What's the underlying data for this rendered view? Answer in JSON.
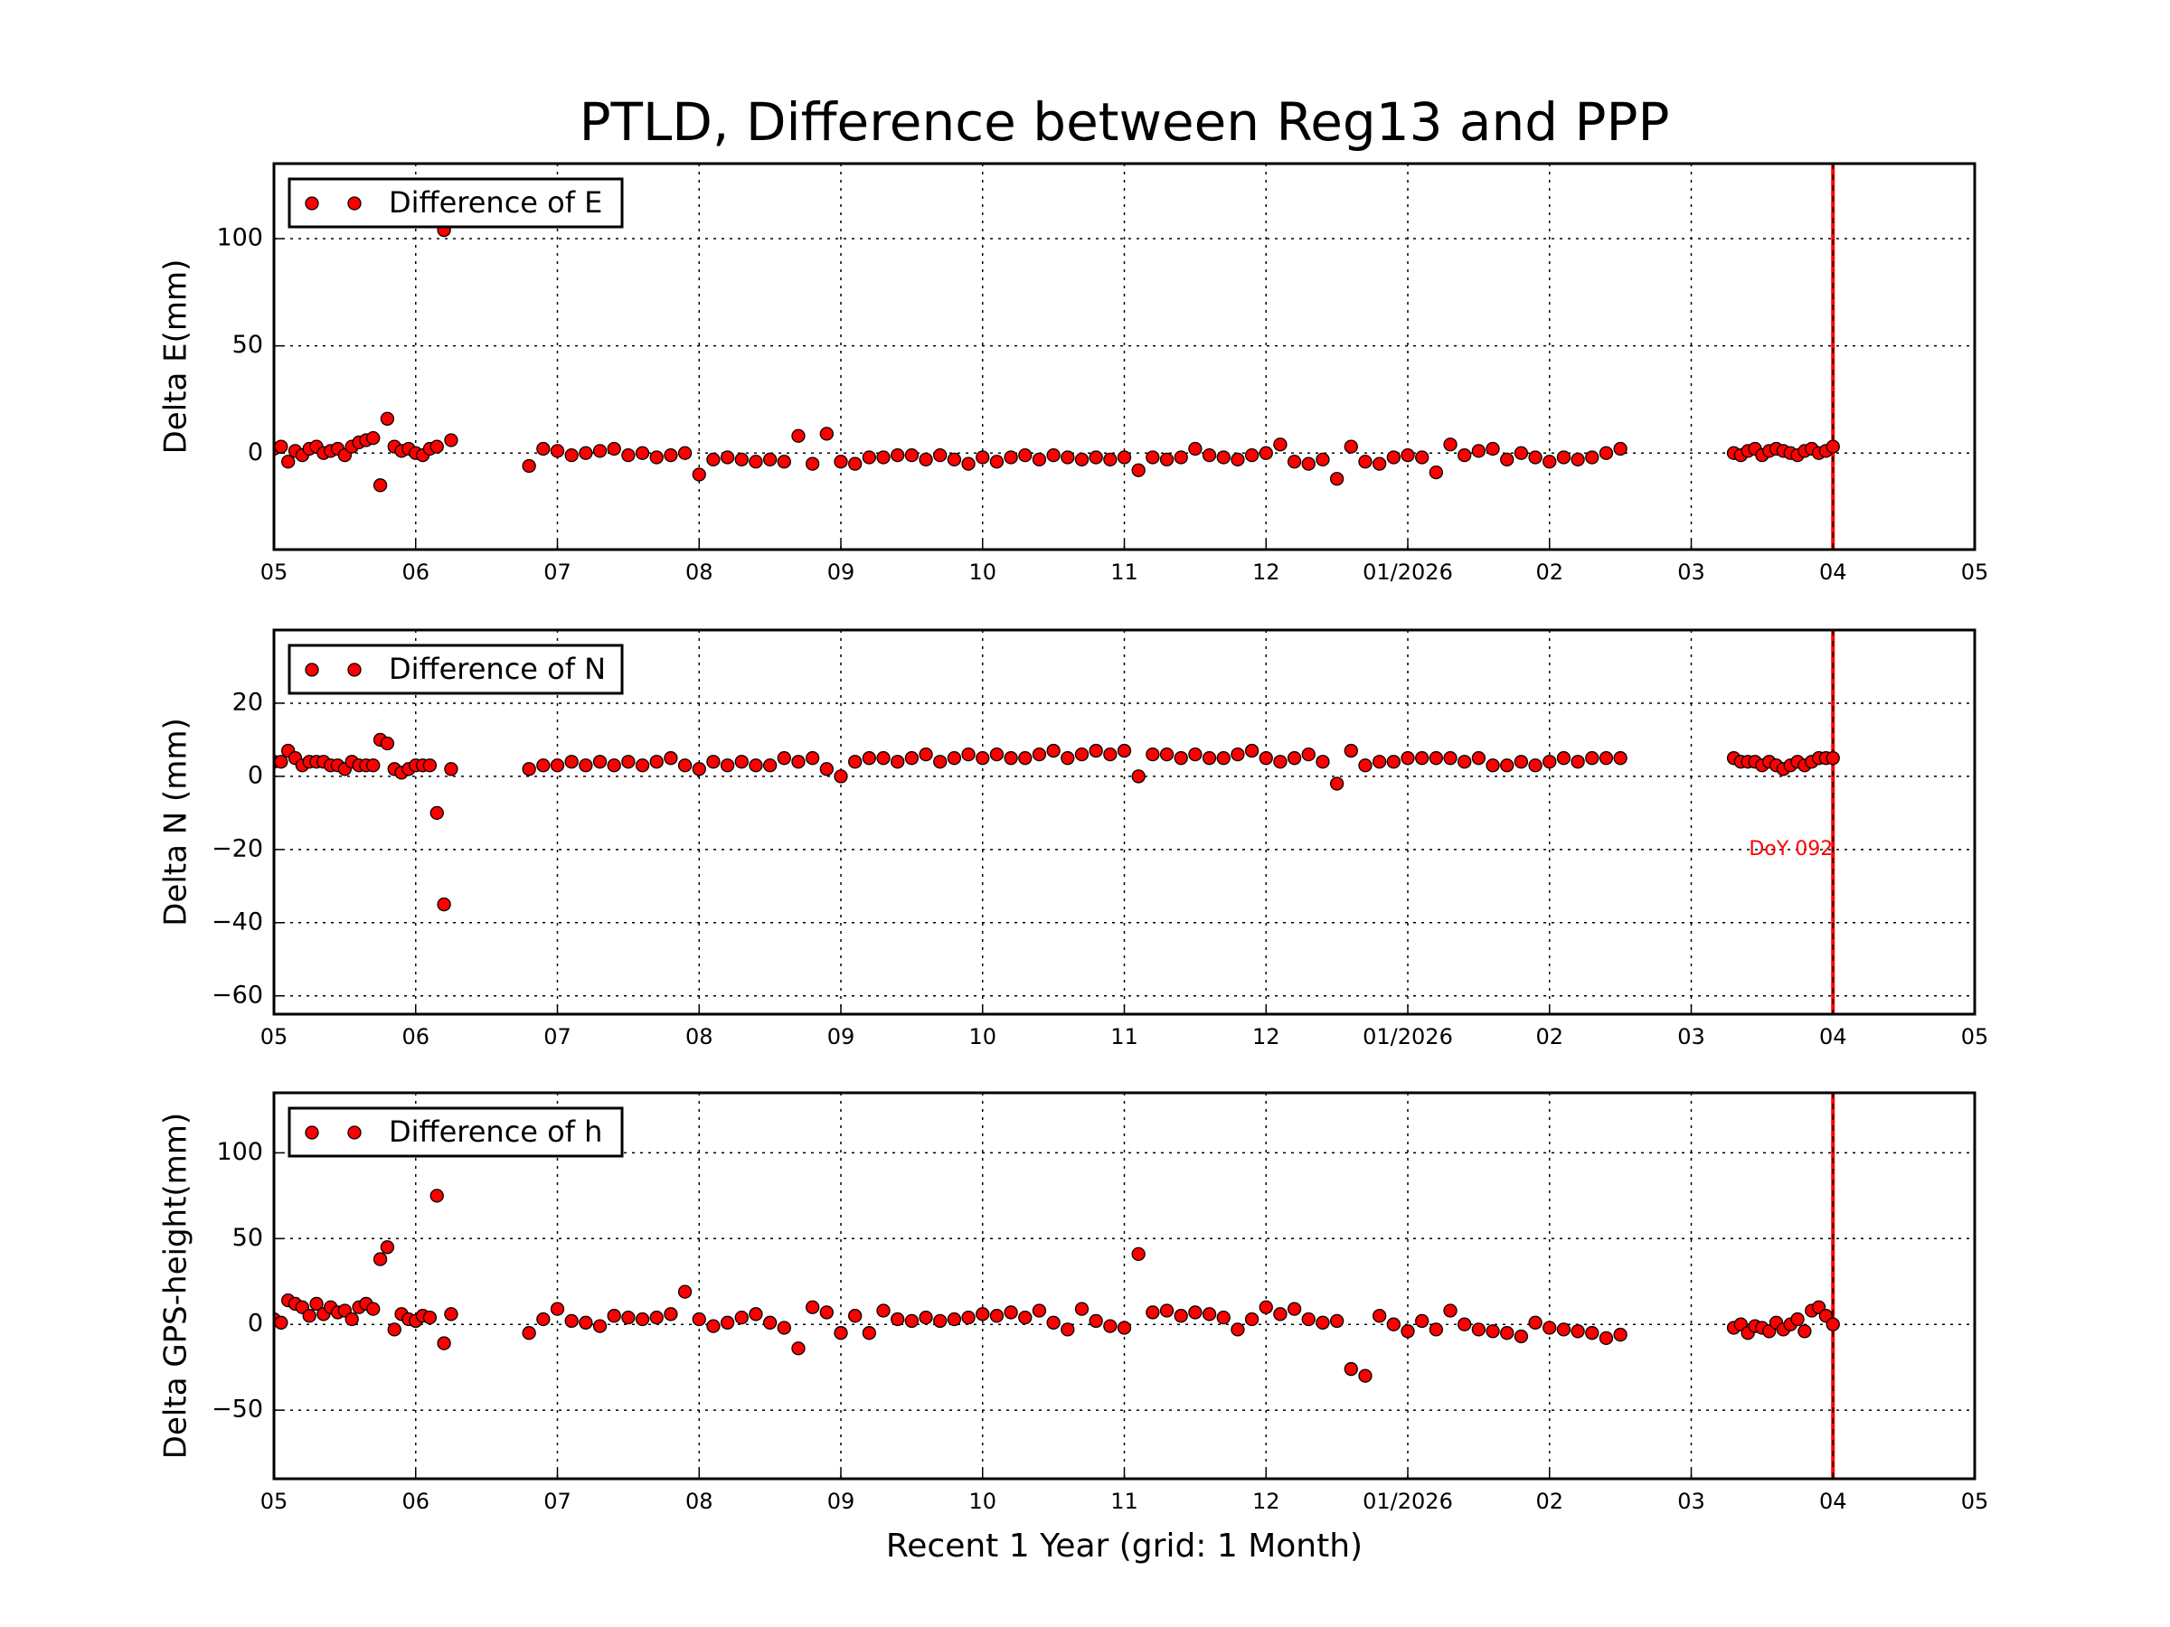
{
  "chart_data": [
    {
      "type": "scatter",
      "title": "PTLD, Difference between Reg13 and PPP",
      "ylabel": "Delta E(mm)",
      "x": [
        0,
        0.05,
        0.1,
        0.15,
        0.2,
        0.25,
        0.3,
        0.35,
        0.4,
        0.45,
        0.5,
        0.55,
        0.6,
        0.65,
        0.7,
        0.75,
        0.8,
        0.85,
        0.9,
        0.95,
        1.0,
        1.05,
        1.1,
        1.15,
        1.2,
        1.25,
        1.8,
        1.9,
        2.0,
        2.1,
        2.2,
        2.3,
        2.4,
        2.5,
        2.6,
        2.7,
        2.8,
        2.9,
        3.0,
        3.1,
        3.2,
        3.3,
        3.4,
        3.5,
        3.6,
        3.7,
        3.8,
        3.9,
        4.0,
        4.1,
        4.2,
        4.3,
        4.4,
        4.5,
        4.6,
        4.7,
        4.8,
        4.9,
        5.0,
        5.1,
        5.2,
        5.3,
        5.4,
        5.5,
        5.6,
        5.7,
        5.8,
        5.9,
        6.0,
        6.1,
        6.2,
        6.3,
        6.4,
        6.5,
        6.6,
        6.7,
        6.8,
        6.9,
        7.0,
        7.1,
        7.2,
        7.3,
        7.4,
        7.5,
        7.6,
        7.7,
        7.8,
        7.9,
        8.0,
        8.1,
        8.2,
        8.3,
        8.4,
        8.5,
        8.6,
        8.7,
        8.8,
        8.9,
        9.0,
        9.1,
        9.2,
        9.3,
        9.4,
        9.5,
        10.3,
        10.35,
        10.4,
        10.45,
        10.5,
        10.55,
        10.6,
        10.65,
        10.7,
        10.75,
        10.8,
        10.85,
        10.9,
        10.95,
        11.0
      ],
      "series": [
        {
          "name": "Difference of E",
          "color": "#ff0000",
          "values": [
            2,
            3,
            -4,
            1,
            -1,
            2,
            3,
            0,
            1,
            2,
            -1,
            3,
            5,
            6,
            7,
            -15,
            16,
            3,
            1,
            2,
            0,
            -1,
            2,
            3,
            104,
            6,
            -6,
            2,
            1,
            -1,
            0,
            1,
            2,
            -1,
            0,
            -2,
            -1,
            0,
            -10,
            -3,
            -2,
            -3,
            -4,
            -3,
            -4,
            8,
            -5,
            9,
            -4,
            -5,
            -2,
            -2,
            -1,
            -1,
            -3,
            -1,
            -3,
            -5,
            -2,
            -4,
            -2,
            -1,
            -3,
            -1,
            -2,
            -3,
            -2,
            -3,
            -2,
            -8,
            -2,
            -3,
            -2,
            2,
            -1,
            -2,
            -3,
            -1,
            0,
            4,
            -4,
            -5,
            -3,
            -12,
            3,
            -4,
            -5,
            -2,
            -1,
            -2,
            -9,
            4,
            -1,
            1,
            2,
            -3,
            0,
            -2,
            -4,
            -2,
            -3,
            -2,
            0,
            2,
            0,
            -1,
            1,
            2,
            -1,
            1,
            2,
            1,
            0,
            -1,
            1,
            2,
            0,
            1,
            3
          ]
        }
      ],
      "xlim": [
        0,
        12
      ],
      "xticks": [
        {
          "value": 0,
          "label": "05"
        },
        {
          "value": 1,
          "label": "06"
        },
        {
          "value": 2,
          "label": "07"
        },
        {
          "value": 3,
          "label": "08"
        },
        {
          "value": 4,
          "label": "09"
        },
        {
          "value": 5,
          "label": "10"
        },
        {
          "value": 6,
          "label": "11"
        },
        {
          "value": 7,
          "label": "12"
        },
        {
          "value": 8,
          "label": "01/2026"
        },
        {
          "value": 9,
          "label": "02"
        },
        {
          "value": 10,
          "label": "03"
        },
        {
          "value": 11,
          "label": "04"
        },
        {
          "value": 12,
          "label": "05"
        }
      ],
      "ylim": [
        -45,
        135
      ],
      "yticks": [
        0,
        50,
        100
      ],
      "grid": true,
      "vline": 11,
      "legend": "upper-left"
    },
    {
      "type": "scatter",
      "ylabel": "Delta N (mm)",
      "x": [
        0,
        0.05,
        0.1,
        0.15,
        0.2,
        0.25,
        0.3,
        0.35,
        0.4,
        0.45,
        0.5,
        0.55,
        0.6,
        0.65,
        0.7,
        0.75,
        0.8,
        0.85,
        0.9,
        0.95,
        1.0,
        1.05,
        1.1,
        1.15,
        1.2,
        1.25,
        1.8,
        1.9,
        2.0,
        2.1,
        2.2,
        2.3,
        2.4,
        2.5,
        2.6,
        2.7,
        2.8,
        2.9,
        3.0,
        3.1,
        3.2,
        3.3,
        3.4,
        3.5,
        3.6,
        3.7,
        3.8,
        3.9,
        4.0,
        4.1,
        4.2,
        4.3,
        4.4,
        4.5,
        4.6,
        4.7,
        4.8,
        4.9,
        5.0,
        5.1,
        5.2,
        5.3,
        5.4,
        5.5,
        5.6,
        5.7,
        5.8,
        5.9,
        6.0,
        6.1,
        6.2,
        6.3,
        6.4,
        6.5,
        6.6,
        6.7,
        6.8,
        6.9,
        7.0,
        7.1,
        7.2,
        7.3,
        7.4,
        7.5,
        7.6,
        7.7,
        7.8,
        7.9,
        8.0,
        8.1,
        8.2,
        8.3,
        8.4,
        8.5,
        8.6,
        8.7,
        8.8,
        8.9,
        9.0,
        9.1,
        9.2,
        9.3,
        9.4,
        9.5,
        10.3,
        10.35,
        10.4,
        10.45,
        10.5,
        10.55,
        10.6,
        10.65,
        10.7,
        10.75,
        10.8,
        10.85,
        10.9,
        10.95,
        11.0
      ],
      "series": [
        {
          "name": "Difference of N",
          "color": "#ff0000",
          "values": [
            4,
            4,
            7,
            5,
            3,
            4,
            4,
            4,
            3,
            3,
            2,
            4,
            3,
            3,
            3,
            10,
            9,
            2,
            1,
            2,
            3,
            3,
            3,
            -10,
            -35,
            2,
            2,
            3,
            3,
            4,
            3,
            4,
            3,
            4,
            3,
            4,
            5,
            3,
            2,
            4,
            3,
            4,
            3,
            3,
            5,
            4,
            5,
            2,
            0,
            4,
            5,
            5,
            4,
            5,
            6,
            4,
            5,
            6,
            5,
            6,
            5,
            5,
            6,
            7,
            5,
            6,
            7,
            6,
            7,
            0,
            6,
            6,
            5,
            6,
            5,
            5,
            6,
            7,
            5,
            4,
            5,
            6,
            4,
            -2,
            7,
            3,
            4,
            4,
            5,
            5,
            5,
            5,
            4,
            5,
            3,
            3,
            4,
            3,
            4,
            5,
            4,
            5,
            5,
            5,
            5,
            4,
            4,
            4,
            3,
            4,
            3,
            2,
            3,
            4,
            3,
            4,
            5,
            5,
            5
          ]
        }
      ],
      "xlim": [
        0,
        12
      ],
      "xticks": [
        {
          "value": 0,
          "label": "05"
        },
        {
          "value": 1,
          "label": "06"
        },
        {
          "value": 2,
          "label": "07"
        },
        {
          "value": 3,
          "label": "08"
        },
        {
          "value": 4,
          "label": "09"
        },
        {
          "value": 5,
          "label": "10"
        },
        {
          "value": 6,
          "label": "11"
        },
        {
          "value": 7,
          "label": "12"
        },
        {
          "value": 8,
          "label": "01/2026"
        },
        {
          "value": 9,
          "label": "02"
        },
        {
          "value": 10,
          "label": "03"
        },
        {
          "value": 11,
          "label": "04"
        },
        {
          "value": 12,
          "label": "05"
        }
      ],
      "ylim": [
        -65,
        40
      ],
      "yticks": [
        {
          "value": -60,
          "label": "−60"
        },
        {
          "value": -40,
          "label": "−40"
        },
        {
          "value": -20,
          "label": "−20"
        },
        0,
        20
      ],
      "grid": true,
      "vline": 11,
      "legend": "upper-left",
      "annotation": {
        "text": "DoY 092",
        "x": 11,
        "y": -20
      }
    },
    {
      "type": "scatter",
      "ylabel": "Delta GPS-height(mm)",
      "xlabel": "Recent 1 Year (grid: 1 Month)",
      "x": [
        0,
        0.05,
        0.1,
        0.15,
        0.2,
        0.25,
        0.3,
        0.35,
        0.4,
        0.45,
        0.5,
        0.55,
        0.6,
        0.65,
        0.7,
        0.75,
        0.8,
        0.85,
        0.9,
        0.95,
        1.0,
        1.05,
        1.1,
        1.15,
        1.2,
        1.25,
        1.8,
        1.9,
        2.0,
        2.1,
        2.2,
        2.3,
        2.4,
        2.5,
        2.6,
        2.7,
        2.8,
        2.9,
        3.0,
        3.1,
        3.2,
        3.3,
        3.4,
        3.5,
        3.6,
        3.7,
        3.8,
        3.9,
        4.0,
        4.1,
        4.2,
        4.3,
        4.4,
        4.5,
        4.6,
        4.7,
        4.8,
        4.9,
        5.0,
        5.1,
        5.2,
        5.3,
        5.4,
        5.5,
        5.6,
        5.7,
        5.8,
        5.9,
        6.0,
        6.1,
        6.2,
        6.3,
        6.4,
        6.5,
        6.6,
        6.7,
        6.8,
        6.9,
        7.0,
        7.1,
        7.2,
        7.3,
        7.4,
        7.5,
        7.6,
        7.7,
        7.8,
        7.9,
        8.0,
        8.1,
        8.2,
        8.3,
        8.4,
        8.5,
        8.6,
        8.7,
        8.8,
        8.9,
        9.0,
        9.1,
        9.2,
        9.3,
        9.4,
        9.5,
        10.3,
        10.35,
        10.4,
        10.45,
        10.5,
        10.55,
        10.6,
        10.65,
        10.7,
        10.75,
        10.8,
        10.85,
        10.9,
        10.95,
        11.0
      ],
      "series": [
        {
          "name": "Difference of h",
          "color": "#ff0000",
          "values": [
            3,
            1,
            14,
            12,
            10,
            5,
            12,
            6,
            10,
            7,
            8,
            3,
            10,
            12,
            9,
            38,
            45,
            -3,
            6,
            3,
            2,
            5,
            4,
            75,
            -11,
            6,
            -5,
            3,
            9,
            2,
            1,
            -1,
            5,
            4,
            3,
            4,
            6,
            19,
            3,
            -1,
            1,
            4,
            6,
            1,
            -2,
            -14,
            10,
            7,
            -5,
            5,
            -5,
            8,
            3,
            2,
            4,
            2,
            3,
            4,
            6,
            5,
            7,
            4,
            8,
            1,
            -3,
            9,
            2,
            -1,
            -2,
            41,
            7,
            8,
            5,
            7,
            6,
            4,
            -3,
            3,
            10,
            6,
            9,
            3,
            1,
            2,
            -26,
            -30,
            5,
            0,
            -4,
            2,
            -3,
            8,
            0,
            -3,
            -4,
            -5,
            -7,
            1,
            -2,
            -3,
            -4,
            -5,
            -8,
            -6,
            -2,
            0,
            -5,
            -1,
            -2,
            -4,
            1,
            -3,
            0,
            3,
            -4,
            8,
            10,
            5,
            0
          ]
        }
      ],
      "xlim": [
        0,
        12
      ],
      "xticks": [
        {
          "value": 0,
          "label": "05"
        },
        {
          "value": 1,
          "label": "06"
        },
        {
          "value": 2,
          "label": "07"
        },
        {
          "value": 3,
          "label": "08"
        },
        {
          "value": 4,
          "label": "09"
        },
        {
          "value": 5,
          "label": "10"
        },
        {
          "value": 6,
          "label": "11"
        },
        {
          "value": 7,
          "label": "12"
        },
        {
          "value": 8,
          "label": "01/2026"
        },
        {
          "value": 9,
          "label": "02"
        },
        {
          "value": 10,
          "label": "03"
        },
        {
          "value": 11,
          "label": "04"
        },
        {
          "value": 12,
          "label": "05"
        }
      ],
      "ylim": [
        -90,
        135
      ],
      "yticks": [
        {
          "value": -50,
          "label": "−50"
        },
        0,
        50,
        100
      ],
      "grid": true,
      "vline": 11,
      "legend": "upper-left"
    }
  ]
}
